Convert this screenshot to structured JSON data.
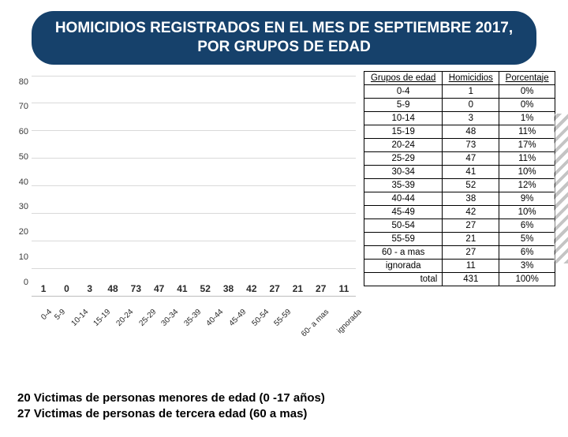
{
  "title": "HOMICIDIOS REGISTRADOS EN EL MES DE SEPTIEMBRE 2017, POR GRUPOS DE EDAD",
  "chart": {
    "type": "bar",
    "y_ticks": [
      "80",
      "70",
      "60",
      "50",
      "40",
      "30",
      "20",
      "10",
      "0"
    ],
    "y_max": 80,
    "bar_color": "#2e5f8a",
    "grid_color": "#d9d9d9",
    "label_fontsize": 11,
    "value_fontsize": 12,
    "categories": [
      "0-4",
      "5-9",
      "10-14",
      "15-19",
      "20-24",
      "25-29",
      "30-34",
      "35-39",
      "40-44",
      "45-49",
      "50-54",
      "55-59",
      "60- a mas",
      "ignorada"
    ],
    "values": [
      1,
      0,
      3,
      48,
      73,
      47,
      41,
      52,
      38,
      42,
      27,
      21,
      27,
      11
    ]
  },
  "table": {
    "headers": [
      "Grupos de edad",
      "Homicidios",
      "Porcentaje"
    ],
    "rows": [
      [
        "0-4",
        "1",
        "0%"
      ],
      [
        "5-9",
        "0",
        "0%"
      ],
      [
        "10-14",
        "3",
        "1%"
      ],
      [
        "15-19",
        "48",
        "11%"
      ],
      [
        "20-24",
        "73",
        "17%"
      ],
      [
        "25-29",
        "47",
        "11%"
      ],
      [
        "30-34",
        "41",
        "10%"
      ],
      [
        "35-39",
        "52",
        "12%"
      ],
      [
        "40-44",
        "38",
        "9%"
      ],
      [
        "45-49",
        "42",
        "10%"
      ],
      [
        "50-54",
        "27",
        "6%"
      ],
      [
        "55-59",
        "21",
        "5%"
      ],
      [
        "60 - a mas",
        "27",
        "6%"
      ],
      [
        "ignorada",
        "11",
        "3%"
      ]
    ],
    "total": [
      "total",
      "431",
      "100%"
    ]
  },
  "footer": {
    "line1": "20 Victimas de personas menores de edad (0 -17 años)",
    "line2": "27 Victimas de personas de tercera edad (60 a mas)"
  }
}
